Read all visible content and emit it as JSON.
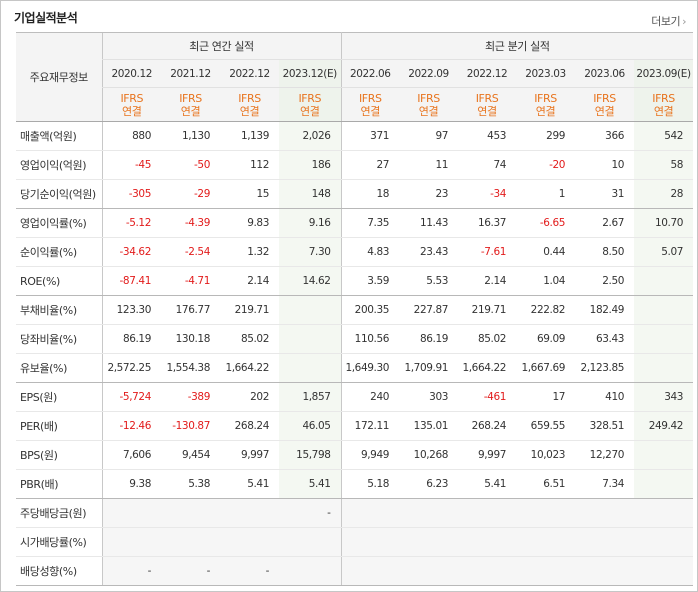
{
  "header": {
    "title": "기업실적분석",
    "more_label": "더보기"
  },
  "table": {
    "row_header_label": "주요재무정보",
    "annual_group_label": "최근 연간 실적",
    "quarter_group_label": "최근 분기 실적",
    "annual_periods": [
      "2020.12",
      "2021.12",
      "2022.12",
      "2023.12(E)"
    ],
    "quarter_periods": [
      "2022.06",
      "2022.09",
      "2022.12",
      "2023.03",
      "2023.06",
      "2023.09(E)"
    ],
    "standard_line1": "IFRS",
    "standard_line2": "연결",
    "rows": [
      {
        "label": "매출액(억원)",
        "values": [
          "880",
          "1,130",
          "1,139",
          "2,026",
          "371",
          "97",
          "453",
          "299",
          "366",
          "542"
        ]
      },
      {
        "label": "영업이익(억원)",
        "values": [
          "-45",
          "-50",
          "112",
          "186",
          "27",
          "11",
          "74",
          "-20",
          "10",
          "58"
        ]
      },
      {
        "label": "당기순이익(억원)",
        "values": [
          "-305",
          "-29",
          "15",
          "148",
          "18",
          "23",
          "-34",
          "1",
          "31",
          "28"
        ]
      },
      {
        "label": "영업이익률(%)",
        "values": [
          "-5.12",
          "-4.39",
          "9.83",
          "9.16",
          "7.35",
          "11.43",
          "16.37",
          "-6.65",
          "2.67",
          "10.70"
        ]
      },
      {
        "label": "순이익률(%)",
        "values": [
          "-34.62",
          "-2.54",
          "1.32",
          "7.30",
          "4.83",
          "23.43",
          "-7.61",
          "0.44",
          "8.50",
          "5.07"
        ]
      },
      {
        "label": "ROE(%)",
        "values": [
          "-87.41",
          "-4.71",
          "2.14",
          "14.62",
          "3.59",
          "5.53",
          "2.14",
          "1.04",
          "2.50",
          ""
        ]
      },
      {
        "label": "부채비율(%)",
        "values": [
          "123.30",
          "176.77",
          "219.71",
          "",
          "200.35",
          "227.87",
          "219.71",
          "222.82",
          "182.49",
          ""
        ]
      },
      {
        "label": "당좌비율(%)",
        "values": [
          "86.19",
          "130.18",
          "85.02",
          "",
          "110.56",
          "86.19",
          "85.02",
          "69.09",
          "63.43",
          ""
        ]
      },
      {
        "label": "유보율(%)",
        "values": [
          "2,572.25",
          "1,554.38",
          "1,664.22",
          "",
          "1,649.30",
          "1,709.91",
          "1,664.22",
          "1,667.69",
          "2,123.85",
          ""
        ]
      },
      {
        "label": "EPS(원)",
        "values": [
          "-5,724",
          "-389",
          "202",
          "1,857",
          "240",
          "303",
          "-461",
          "17",
          "410",
          "343"
        ]
      },
      {
        "label": "PER(배)",
        "values": [
          "-12.46",
          "-130.87",
          "268.24",
          "46.05",
          "172.11",
          "135.01",
          "268.24",
          "659.55",
          "328.51",
          "249.42"
        ]
      },
      {
        "label": "BPS(원)",
        "values": [
          "7,606",
          "9,454",
          "9,997",
          "15,798",
          "9,949",
          "10,268",
          "9,997",
          "10,023",
          "12,270",
          ""
        ]
      },
      {
        "label": "PBR(배)",
        "values": [
          "9.38",
          "5.38",
          "5.41",
          "5.41",
          "5.18",
          "6.23",
          "5.41",
          "6.51",
          "7.34",
          ""
        ]
      },
      {
        "label": "주당배당금(원)",
        "values": [
          "",
          "",
          "",
          "-",
          "",
          "",
          "",
          "",
          "",
          ""
        ]
      },
      {
        "label": "시가배당률(%)",
        "values": [
          "",
          "",
          "",
          "",
          "",
          "",
          "",
          "",
          "",
          ""
        ]
      },
      {
        "label": "배당성향(%)",
        "values": [
          "-",
          "-",
          "-",
          "",
          "",
          "",
          "",
          "",
          "",
          ""
        ]
      }
    ]
  },
  "colors": {
    "negative": "#e21b1b",
    "ifrs": "#e8741e",
    "estimate_bg": "#f4f8f2"
  }
}
